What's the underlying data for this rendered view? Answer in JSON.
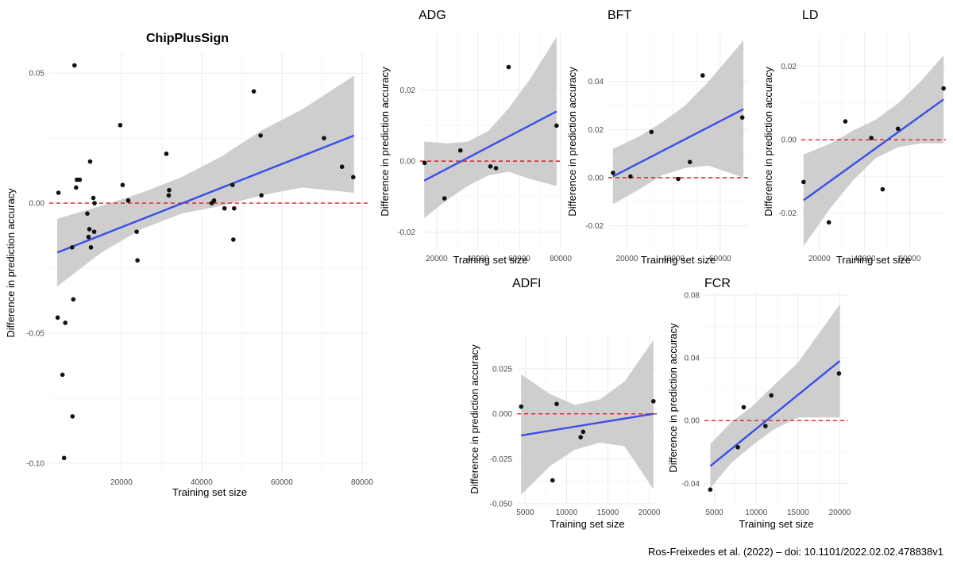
{
  "caption": "Ros-Freixedes et al. (2022) – doi: 10.1101/2022.02.02.478838v1",
  "colors": {
    "fit_line": "#3a4fe6",
    "ribbon": "#c9c9c9",
    "zero_line": "#e41a1c",
    "points": "#111111",
    "grid": "#ebebeb"
  },
  "chart_data": [
    {
      "id": "chipplussign",
      "type": "scatter",
      "title": "ChipPlusSign",
      "xlabel": "Training set size",
      "ylabel": "Difference in prediction accuracy",
      "xlim": [
        2000,
        82000
      ],
      "ylim": [
        -0.104,
        0.058
      ],
      "xticks": [
        20000,
        40000,
        60000,
        80000
      ],
      "yticks": [
        -0.1,
        -0.05,
        0.0,
        0.05
      ],
      "ytick_labels": [
        "-0.10",
        "-0.05",
        "0.00",
        "0.05"
      ],
      "fit": {
        "x": [
          4000,
          78000
        ],
        "y": [
          -0.019,
          0.026
        ]
      },
      "ribbon": {
        "x": [
          4000,
          15000,
          25000,
          35000,
          45000,
          55000,
          65000,
          78000
        ],
        "upper": [
          -0.006,
          -0.001,
          0.004,
          0.01,
          0.018,
          0.028,
          0.036,
          0.049
        ],
        "lower": [
          -0.032,
          -0.019,
          -0.01,
          -0.004,
          -0.001,
          0.003,
          0.006,
          0.004
        ]
      },
      "points": [
        [
          4300,
          0.004
        ],
        [
          4100,
          -0.044
        ],
        [
          5300,
          -0.066
        ],
        [
          5700,
          -0.098
        ],
        [
          6000,
          -0.046
        ],
        [
          7700,
          -0.017
        ],
        [
          7800,
          -0.082
        ],
        [
          8000,
          -0.037
        ],
        [
          8300,
          0.053
        ],
        [
          8700,
          0.006
        ],
        [
          8900,
          0.009
        ],
        [
          9600,
          0.009
        ],
        [
          11500,
          -0.004
        ],
        [
          11800,
          -0.013
        ],
        [
          12000,
          -0.01
        ],
        [
          12200,
          0.016
        ],
        [
          12400,
          -0.017
        ],
        [
          13000,
          0.002
        ],
        [
          13200,
          -0.011
        ],
        [
          13300,
          0.0
        ],
        [
          19700,
          0.03
        ],
        [
          20300,
          0.007
        ],
        [
          21700,
          0.001
        ],
        [
          23800,
          -0.011
        ],
        [
          24000,
          -0.022
        ],
        [
          31200,
          0.019
        ],
        [
          31800,
          0.003
        ],
        [
          31900,
          0.005
        ],
        [
          42500,
          0.0
        ],
        [
          43100,
          0.001
        ],
        [
          45700,
          -0.002
        ],
        [
          47700,
          0.007
        ],
        [
          47900,
          -0.014
        ],
        [
          48100,
          -0.002
        ],
        [
          53000,
          0.043
        ],
        [
          54700,
          0.026
        ],
        [
          54900,
          0.003
        ],
        [
          70500,
          0.025
        ],
        [
          75000,
          0.014
        ],
        [
          77800,
          0.01
        ]
      ]
    },
    {
      "id": "adg",
      "type": "scatter",
      "title": "ADG",
      "xlabel": "Training set size",
      "ylabel": "Difference in prediction accuracy",
      "xlim": [
        12000,
        80000
      ],
      "ylim": [
        -0.025,
        0.036
      ],
      "xticks": [
        20000,
        40000,
        60000,
        80000
      ],
      "yticks": [
        -0.02,
        0.0,
        0.02
      ],
      "ytick_labels": [
        "-0.02",
        "0.00",
        "0.02"
      ],
      "fit": {
        "x": [
          14000,
          78000
        ],
        "y": [
          -0.0055,
          0.014
        ]
      },
      "ribbon": {
        "x": [
          14000,
          25000,
          35000,
          45000,
          55000,
          65000,
          78000
        ],
        "upper": [
          0.0055,
          0.005,
          0.0055,
          0.0085,
          0.015,
          0.023,
          0.035
        ],
        "lower": [
          -0.016,
          -0.011,
          -0.007,
          -0.004,
          -0.003,
          -0.005,
          -0.007
        ]
      },
      "points": [
        [
          14200,
          -0.0005
        ],
        [
          23800,
          -0.0105
        ],
        [
          31500,
          0.003
        ],
        [
          46000,
          -0.0015
        ],
        [
          48700,
          -0.002
        ],
        [
          54800,
          0.0265
        ],
        [
          78000,
          0.01
        ]
      ]
    },
    {
      "id": "bft",
      "type": "scatter",
      "title": "BFT",
      "xlabel": "Training set size",
      "ylabel": "Difference in prediction accuracy",
      "xlim": [
        12000,
        72000
      ],
      "ylim": [
        -0.03,
        0.06
      ],
      "xticks": [
        20000,
        40000,
        60000
      ],
      "yticks": [
        -0.02,
        0.0,
        0.02,
        0.04
      ],
      "ytick_labels": [
        "-0.02",
        "0.00",
        "0.02",
        "0.04"
      ],
      "fit": {
        "x": [
          14000,
          70000
        ],
        "y": [
          0.0005,
          0.0285
        ]
      },
      "ribbon": {
        "x": [
          14000,
          25000,
          35000,
          45000,
          55000,
          70000
        ],
        "upper": [
          0.012,
          0.017,
          0.023,
          0.03,
          0.04,
          0.057
        ],
        "lower": [
          -0.011,
          -0.005,
          0.001,
          0.004,
          0.005,
          0.0
        ]
      },
      "points": [
        [
          14000,
          0.002
        ],
        [
          21500,
          0.0005
        ],
        [
          30500,
          0.019
        ],
        [
          42000,
          -0.0005
        ],
        [
          47000,
          0.0065
        ],
        [
          52500,
          0.0425
        ],
        [
          69500,
          0.025
        ]
      ]
    },
    {
      "id": "ld",
      "type": "scatter",
      "title": "LD",
      "xlabel": "Training set size",
      "ylabel": "Difference in prediction accuracy",
      "xlim": [
        12000,
        76000
      ],
      "ylim": [
        -0.03,
        0.029
      ],
      "xticks": [
        20000,
        40000,
        60000
      ],
      "yticks": [
        -0.02,
        0.0,
        0.02
      ],
      "ytick_labels": [
        "-0.02",
        "0.00",
        "0.02"
      ],
      "fit": {
        "x": [
          13000,
          75000
        ],
        "y": [
          -0.0165,
          0.011
        ]
      },
      "ribbon": {
        "x": [
          13000,
          25000,
          35000,
          45000,
          55000,
          65000,
          75000
        ],
        "upper": [
          -0.004,
          -0.001,
          0.0025,
          0.0055,
          0.01,
          0.016,
          0.023
        ],
        "lower": [
          -0.029,
          -0.0185,
          -0.011,
          -0.005,
          -0.002,
          -0.001,
          -0.001
        ]
      },
      "points": [
        [
          13000,
          -0.0115
        ],
        [
          24200,
          -0.0225
        ],
        [
          31500,
          0.005
        ],
        [
          43000,
          0.0005
        ],
        [
          48000,
          -0.0135
        ],
        [
          54800,
          0.003
        ],
        [
          75000,
          0.014
        ]
      ]
    },
    {
      "id": "adfi",
      "type": "scatter",
      "title": "ADFI",
      "xlabel": "Training set size",
      "ylabel": "Difference in prediction accuracy",
      "xlim": [
        4000,
        21000
      ],
      "ylim": [
        -0.05,
        0.044
      ],
      "xticks": [
        5000,
        10000,
        15000,
        20000
      ],
      "yticks": [
        -0.05,
        -0.025,
        0.0,
        0.025
      ],
      "ytick_labels": [
        "-0.050",
        "-0.025",
        "0.000",
        "0.025"
      ],
      "fit": {
        "x": [
          4500,
          20500
        ],
        "y": [
          -0.012,
          0.0
        ]
      },
      "ribbon": {
        "x": [
          4500,
          8000,
          11000,
          14000,
          17000,
          20500
        ],
        "upper": [
          0.022,
          0.011,
          0.005,
          0.008,
          0.018,
          0.041
        ],
        "lower": [
          -0.045,
          -0.029,
          -0.02,
          -0.016,
          -0.018,
          -0.042
        ]
      },
      "points": [
        [
          4500,
          0.004
        ],
        [
          8300,
          -0.037
        ],
        [
          8800,
          0.0055
        ],
        [
          11700,
          -0.013
        ],
        [
          12000,
          -0.01
        ],
        [
          20500,
          0.007
        ]
      ]
    },
    {
      "id": "fcr",
      "type": "scatter",
      "title": "FCR",
      "xlabel": "Training set size",
      "ylabel": "Difference in prediction accuracy",
      "xlim": [
        3800,
        21000
      ],
      "ylim": [
        -0.053,
        0.082
      ],
      "xticks": [
        5000,
        10000,
        15000,
        20000
      ],
      "yticks": [
        -0.04,
        0.0,
        0.04,
        0.08
      ],
      "ytick_labels": [
        "-0.04",
        "0.00",
        "0.04",
        "0.08"
      ],
      "fit": {
        "x": [
          4500,
          20000
        ],
        "y": [
          -0.029,
          0.038
        ]
      },
      "ribbon": {
        "x": [
          4500,
          7000,
          9500,
          12000,
          15000,
          20000
        ],
        "upper": [
          -0.015,
          -0.001,
          0.009,
          0.022,
          0.037,
          0.074
        ],
        "lower": [
          -0.043,
          -0.027,
          -0.016,
          -0.006,
          0.002,
          0.002
        ]
      },
      "points": [
        [
          4500,
          -0.044
        ],
        [
          7800,
          -0.017
        ],
        [
          8500,
          0.0085
        ],
        [
          11100,
          -0.0035
        ],
        [
          11800,
          0.016
        ],
        [
          19900,
          0.03
        ]
      ]
    }
  ]
}
